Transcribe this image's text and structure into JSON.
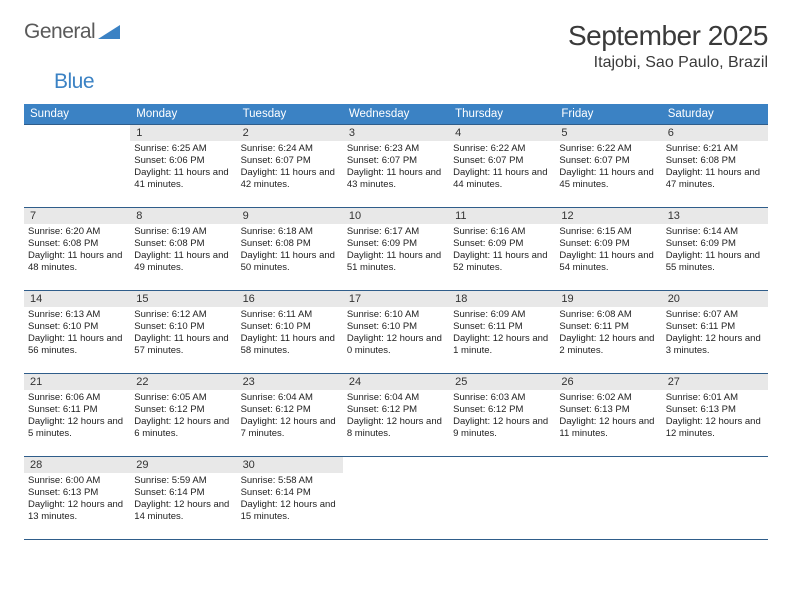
{
  "logo": {
    "word1": "General",
    "word2": "Blue"
  },
  "title": {
    "month": "September 2025",
    "location": "Itajobi, Sao Paulo, Brazil"
  },
  "colors": {
    "header_bg": "#3b82c4",
    "header_text": "#ffffff",
    "daynum_bg": "#e8e8e8",
    "row_border": "#2f5d8a",
    "text": "#222222"
  },
  "dayNames": [
    "Sunday",
    "Monday",
    "Tuesday",
    "Wednesday",
    "Thursday",
    "Friday",
    "Saturday"
  ],
  "weeks": [
    [
      {
        "n": "",
        "sunrise": "",
        "sunset": "",
        "daylight": ""
      },
      {
        "n": "1",
        "sunrise": "Sunrise: 6:25 AM",
        "sunset": "Sunset: 6:06 PM",
        "daylight": "Daylight: 11 hours and 41 minutes."
      },
      {
        "n": "2",
        "sunrise": "Sunrise: 6:24 AM",
        "sunset": "Sunset: 6:07 PM",
        "daylight": "Daylight: 11 hours and 42 minutes."
      },
      {
        "n": "3",
        "sunrise": "Sunrise: 6:23 AM",
        "sunset": "Sunset: 6:07 PM",
        "daylight": "Daylight: 11 hours and 43 minutes."
      },
      {
        "n": "4",
        "sunrise": "Sunrise: 6:22 AM",
        "sunset": "Sunset: 6:07 PM",
        "daylight": "Daylight: 11 hours and 44 minutes."
      },
      {
        "n": "5",
        "sunrise": "Sunrise: 6:22 AM",
        "sunset": "Sunset: 6:07 PM",
        "daylight": "Daylight: 11 hours and 45 minutes."
      },
      {
        "n": "6",
        "sunrise": "Sunrise: 6:21 AM",
        "sunset": "Sunset: 6:08 PM",
        "daylight": "Daylight: 11 hours and 47 minutes."
      }
    ],
    [
      {
        "n": "7",
        "sunrise": "Sunrise: 6:20 AM",
        "sunset": "Sunset: 6:08 PM",
        "daylight": "Daylight: 11 hours and 48 minutes."
      },
      {
        "n": "8",
        "sunrise": "Sunrise: 6:19 AM",
        "sunset": "Sunset: 6:08 PM",
        "daylight": "Daylight: 11 hours and 49 minutes."
      },
      {
        "n": "9",
        "sunrise": "Sunrise: 6:18 AM",
        "sunset": "Sunset: 6:08 PM",
        "daylight": "Daylight: 11 hours and 50 minutes."
      },
      {
        "n": "10",
        "sunrise": "Sunrise: 6:17 AM",
        "sunset": "Sunset: 6:09 PM",
        "daylight": "Daylight: 11 hours and 51 minutes."
      },
      {
        "n": "11",
        "sunrise": "Sunrise: 6:16 AM",
        "sunset": "Sunset: 6:09 PM",
        "daylight": "Daylight: 11 hours and 52 minutes."
      },
      {
        "n": "12",
        "sunrise": "Sunrise: 6:15 AM",
        "sunset": "Sunset: 6:09 PM",
        "daylight": "Daylight: 11 hours and 54 minutes."
      },
      {
        "n": "13",
        "sunrise": "Sunrise: 6:14 AM",
        "sunset": "Sunset: 6:09 PM",
        "daylight": "Daylight: 11 hours and 55 minutes."
      }
    ],
    [
      {
        "n": "14",
        "sunrise": "Sunrise: 6:13 AM",
        "sunset": "Sunset: 6:10 PM",
        "daylight": "Daylight: 11 hours and 56 minutes."
      },
      {
        "n": "15",
        "sunrise": "Sunrise: 6:12 AM",
        "sunset": "Sunset: 6:10 PM",
        "daylight": "Daylight: 11 hours and 57 minutes."
      },
      {
        "n": "16",
        "sunrise": "Sunrise: 6:11 AM",
        "sunset": "Sunset: 6:10 PM",
        "daylight": "Daylight: 11 hours and 58 minutes."
      },
      {
        "n": "17",
        "sunrise": "Sunrise: 6:10 AM",
        "sunset": "Sunset: 6:10 PM",
        "daylight": "Daylight: 12 hours and 0 minutes."
      },
      {
        "n": "18",
        "sunrise": "Sunrise: 6:09 AM",
        "sunset": "Sunset: 6:11 PM",
        "daylight": "Daylight: 12 hours and 1 minute."
      },
      {
        "n": "19",
        "sunrise": "Sunrise: 6:08 AM",
        "sunset": "Sunset: 6:11 PM",
        "daylight": "Daylight: 12 hours and 2 minutes."
      },
      {
        "n": "20",
        "sunrise": "Sunrise: 6:07 AM",
        "sunset": "Sunset: 6:11 PM",
        "daylight": "Daylight: 12 hours and 3 minutes."
      }
    ],
    [
      {
        "n": "21",
        "sunrise": "Sunrise: 6:06 AM",
        "sunset": "Sunset: 6:11 PM",
        "daylight": "Daylight: 12 hours and 5 minutes."
      },
      {
        "n": "22",
        "sunrise": "Sunrise: 6:05 AM",
        "sunset": "Sunset: 6:12 PM",
        "daylight": "Daylight: 12 hours and 6 minutes."
      },
      {
        "n": "23",
        "sunrise": "Sunrise: 6:04 AM",
        "sunset": "Sunset: 6:12 PM",
        "daylight": "Daylight: 12 hours and 7 minutes."
      },
      {
        "n": "24",
        "sunrise": "Sunrise: 6:04 AM",
        "sunset": "Sunset: 6:12 PM",
        "daylight": "Daylight: 12 hours and 8 minutes."
      },
      {
        "n": "25",
        "sunrise": "Sunrise: 6:03 AM",
        "sunset": "Sunset: 6:12 PM",
        "daylight": "Daylight: 12 hours and 9 minutes."
      },
      {
        "n": "26",
        "sunrise": "Sunrise: 6:02 AM",
        "sunset": "Sunset: 6:13 PM",
        "daylight": "Daylight: 12 hours and 11 minutes."
      },
      {
        "n": "27",
        "sunrise": "Sunrise: 6:01 AM",
        "sunset": "Sunset: 6:13 PM",
        "daylight": "Daylight: 12 hours and 12 minutes."
      }
    ],
    [
      {
        "n": "28",
        "sunrise": "Sunrise: 6:00 AM",
        "sunset": "Sunset: 6:13 PM",
        "daylight": "Daylight: 12 hours and 13 minutes."
      },
      {
        "n": "29",
        "sunrise": "Sunrise: 5:59 AM",
        "sunset": "Sunset: 6:14 PM",
        "daylight": "Daylight: 12 hours and 14 minutes."
      },
      {
        "n": "30",
        "sunrise": "Sunrise: 5:58 AM",
        "sunset": "Sunset: 6:14 PM",
        "daylight": "Daylight: 12 hours and 15 minutes."
      },
      {
        "n": "",
        "sunrise": "",
        "sunset": "",
        "daylight": ""
      },
      {
        "n": "",
        "sunrise": "",
        "sunset": "",
        "daylight": ""
      },
      {
        "n": "",
        "sunrise": "",
        "sunset": "",
        "daylight": ""
      },
      {
        "n": "",
        "sunrise": "",
        "sunset": "",
        "daylight": ""
      }
    ]
  ]
}
